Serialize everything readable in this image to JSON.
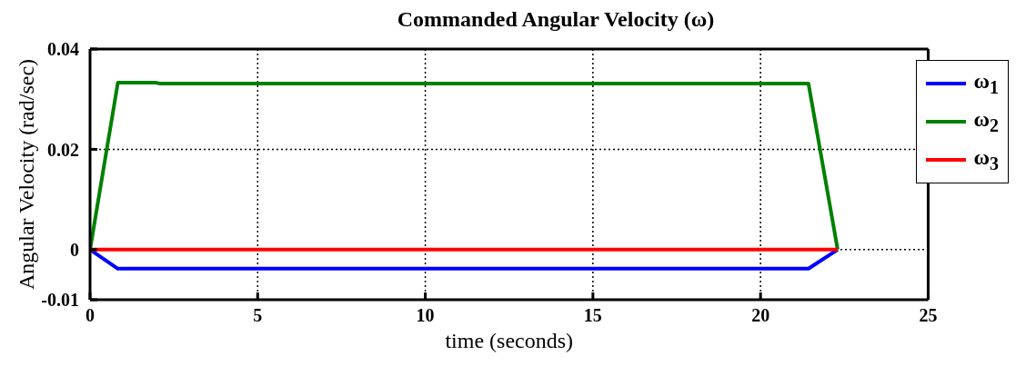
{
  "chart_data": {
    "type": "line",
    "title": "Commanded Angular Velocity (ω)",
    "xlabel": "time (seconds)",
    "ylabel": "Angular Velocity (rad/sec)",
    "xlim": [
      0,
      25
    ],
    "xticks": [
      0,
      5,
      10,
      15,
      20,
      25
    ],
    "ylim": [
      -0.01,
      0.04
    ],
    "yticks": [
      -0.01,
      0,
      0.02,
      0.04
    ],
    "grid": true,
    "legend": "top right",
    "line_style": "solid",
    "marker": "none",
    "series": [
      {
        "name": "ω$_{1}$",
        "color": "#0000ff",
        "x": [
          0,
          0.83,
          21.43,
          22.3
        ],
        "values": [
          0,
          -0.0038,
          -0.0038,
          0
        ]
      },
      {
        "name": "ω$_{2}$",
        "color": "#008000",
        "x": [
          0,
          0.83,
          1.95,
          2.1,
          21.43,
          22.3
        ],
        "values": [
          0,
          0.0333,
          0.0333,
          0.0331,
          0.0331,
          0
        ]
      },
      {
        "name": "ω$_{3}$",
        "color": "#ff0000",
        "x": [
          0,
          22.3
        ],
        "values": [
          0,
          0
        ]
      }
    ]
  }
}
